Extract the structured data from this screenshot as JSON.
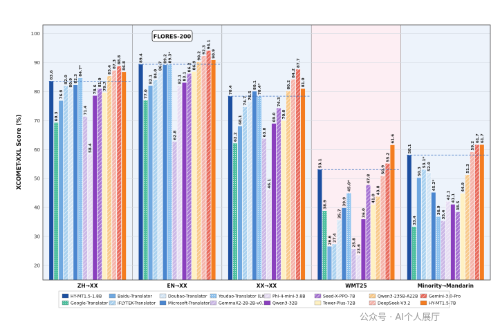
{
  "chart_data": {
    "type": "bar",
    "title": "FLORES-200",
    "ylabel": "XCOMET-XXL Score (%)",
    "xlabel": "",
    "ylim": [
      15,
      103
    ],
    "yticks": [
      20,
      30,
      40,
      50,
      60,
      70,
      80,
      90,
      100
    ],
    "grid": true,
    "categories": [
      "ZH→XX",
      "EN→XX",
      "XX→XX",
      "WMT25",
      "Minority→Mandarin"
    ],
    "series": [
      {
        "name": "HY-MT1.5-1.8B",
        "color": "#1c4fa0",
        "pattern": "solid",
        "values": [
          83.6,
          89.4,
          78.4,
          53.1,
          58.1
        ]
      },
      {
        "name": "Google-Translator",
        "color": "#4dbf9e",
        "pattern": "dots",
        "values": [
          69.3,
          77.0,
          62.2,
          38.9,
          33.4
        ]
      },
      {
        "name": "Baidu-Translator",
        "color": "#6fa8e0",
        "pattern": "solid",
        "values": [
          76.9,
          82.1,
          68.1,
          26.6,
          50.3
        ]
      },
      {
        "name": "iFLYTEK-Translator",
        "color": "#a9d1ef",
        "pattern": "hatch",
        "values": [
          82.0,
          84.0,
          74.7,
          27.4,
          53.1
        ]
      },
      {
        "name": "Doubao-Translator",
        "color": "#d4e6f5",
        "pattern": "hatch",
        "values": [
          80.9,
          86.7,
          76.5,
          35.7,
          52.0
        ]
      },
      {
        "name": "Microsoft-Translator",
        "color": "#4a86cf",
        "pattern": "solid",
        "values": [
          82.3,
          89.2,
          80.1,
          39.9,
          45.2
        ]
      },
      {
        "name": "Youdao-Translator (Lite)",
        "color": "#8ec2ee",
        "pattern": "dots",
        "values": [
          84.7,
          89.3,
          78.4,
          45.0,
          36.9
        ]
      },
      {
        "name": "GemmaX2-28-2B-v0.1",
        "color": "#cbb8e6",
        "pattern": "hatch",
        "values": [
          71.4,
          62.8,
          63.8,
          25.8,
          35.4
        ]
      },
      {
        "name": "Phi-4-mini-3.8B",
        "color": "#e6dcf2",
        "pattern": "hatch",
        "values": [
          58.4,
          82.1,
          46.1,
          23.6,
          42.1
        ]
      },
      {
        "name": "Qwen3-32B",
        "color": "#8a3fbe",
        "pattern": "solid",
        "values": [
          78.6,
          83.1,
          69.0,
          36.0,
          41.1
        ]
      },
      {
        "name": "Seed-X-PPO-7B",
        "color": "#a673d2",
        "pattern": "hatch",
        "values": [
          81.0,
          86.2,
          74.3,
          47.8,
          38.5
        ]
      },
      {
        "name": "Tower-Plus-72B",
        "color": "#fff1c2",
        "pattern": "solid",
        "values": [
          79.7,
          86.9,
          70.0,
          41.0,
          44.9
        ]
      },
      {
        "name": "Qwen3-235B-A22B",
        "color": "#f8c98a",
        "pattern": "hatch",
        "values": [
          85.4,
          90.2,
          80.2,
          43.8,
          51.3
        ]
      },
      {
        "name": "DeepSeek-V3.2",
        "color": "#f5b3aa",
        "pattern": "hatch",
        "values": [
          87.3,
          92.3,
          84.2,
          50.9,
          59.2
        ]
      },
      {
        "name": "Gemini-3.0-Pro",
        "color": "#e86a5c",
        "pattern": "hatch",
        "values": [
          88.8,
          94.1,
          87.7,
          55.2,
          61.7
        ]
      },
      {
        "name": "HY-MT1.5-7B",
        "color": "#f47c20",
        "pattern": "solid",
        "values": [
          86.8,
          90.9,
          81.0,
          61.6,
          61.7
        ]
      }
    ],
    "labels": [
      [
        "83.6",
        "89.4",
        "78.4",
        "53.1",
        "58.1"
      ],
      [
        "69.3",
        "77.0",
        "62.2",
        "38.9",
        "33.4"
      ],
      [
        "76.9",
        "82.1",
        "68.1",
        "26.6",
        "50.3"
      ],
      [
        "82.0",
        "84.0",
        "74.7",
        "27.4",
        "53.1*"
      ],
      [
        "80.9",
        "86.7",
        "76.5",
        "35.7",
        "52.0"
      ],
      [
        "82.3",
        "89.2",
        "80.1",
        "39.9",
        "45.2*"
      ],
      [
        "84.7*",
        "89.3*",
        "78.4*",
        "45.0*",
        "36.9"
      ],
      [
        "71.4",
        "62.8",
        "63.8",
        "25.8",
        "35.4"
      ],
      [
        "58.4",
        "82.1",
        "46.1",
        "23.6",
        "42.1"
      ],
      [
        "78.6",
        "83.1",
        "69.0",
        "36.0",
        "41.1"
      ],
      [
        "81.0",
        "86.2",
        "74.3",
        "47.8",
        "38.5"
      ],
      [
        "79.7",
        "86.9",
        "70.0",
        "41.0",
        "44.9"
      ],
      [
        "85.4",
        "90.2",
        "80.2",
        "43.8",
        "51.3"
      ],
      [
        "87.3",
        "92.3",
        "84.2",
        "50.9",
        "59.2"
      ],
      [
        "88.8",
        "94.1",
        "87.7",
        "55.2",
        "61.7"
      ],
      [
        "86.8",
        "90.9",
        "81.0",
        "61.6",
        "61.7"
      ]
    ],
    "reference_lines": [
      83.6,
      89.4,
      78.4,
      53.1,
      58.1
    ],
    "highlight_region": "FLORES-200",
    "annotation": "FLORES-200",
    "legend_position": "bottom"
  },
  "watermark": "公众号 · AI个人展厅"
}
